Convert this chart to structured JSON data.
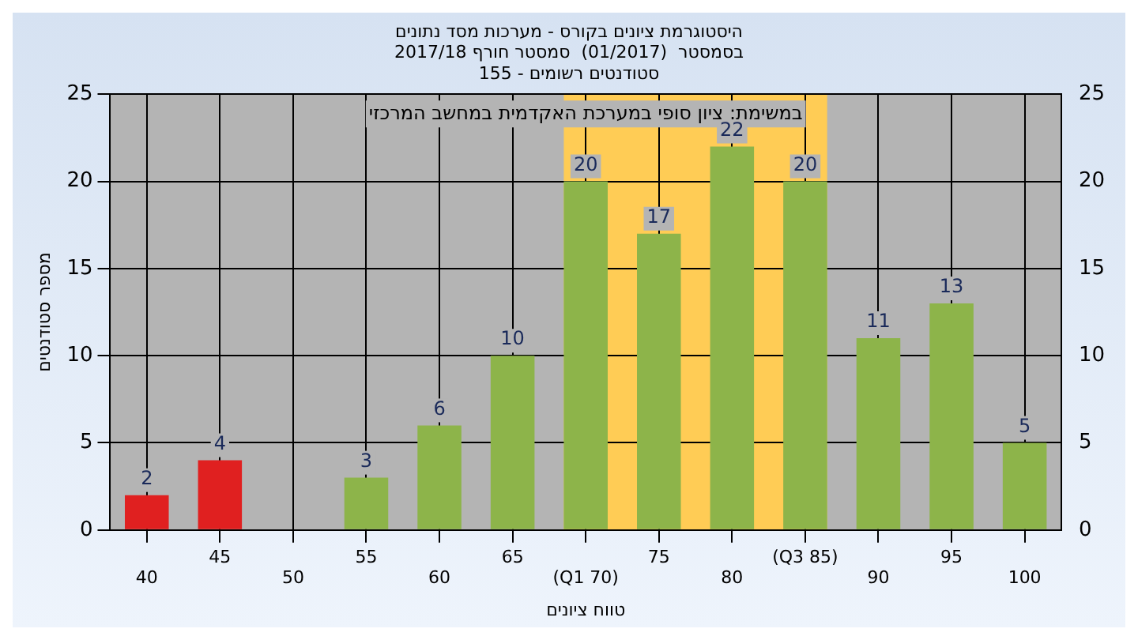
{
  "chart_data": {
    "type": "bar",
    "title": "היסטוגרמת ציונים בקורס - מערכות מסד נתונים\nבסמסטר  (01/2017)  סמסטר חורף 2017/18\nסטודנטים רשומים - 155",
    "xlabel": "טווח ציונים",
    "ylabel": "מספר סטודנטים",
    "annotations": [
      "במשימת: ציון סופי במערכת האקדמית במחשב המרכזי"
    ],
    "categories": [
      "40",
      "45",
      "50",
      "55",
      "60",
      "65",
      "(Q1 70)",
      "75",
      "80",
      "(Q3 85)",
      "90",
      "95",
      "100"
    ],
    "values": [
      2,
      4,
      0,
      3,
      6,
      10,
      20,
      17,
      22,
      20,
      11,
      13,
      5
    ],
    "colors": [
      "#e02020",
      "#e02020",
      "#8db44a",
      "#8db44a",
      "#8db44a",
      "#8db44a",
      "#8db44a",
      "#8db44a",
      "#8db44a",
      "#8db44a",
      "#8db44a",
      "#8db44a",
      "#8db44a"
    ],
    "value_labels": [
      "2",
      "4",
      null,
      "3",
      "6",
      "10",
      "20",
      "17",
      "22",
      "20",
      "11",
      "13",
      "5"
    ],
    "bands": [
      {
        "axis": "x",
        "from": "(Q1 70)",
        "to": "(Q3 85)",
        "color": "#ffcc55"
      }
    ],
    "ylim": [
      0,
      25
    ],
    "yticks": [
      0,
      5,
      10,
      15,
      20,
      25
    ],
    "y2lim": [
      0,
      25
    ],
    "y2ticks": [
      0,
      5,
      10,
      15,
      20,
      25
    ],
    "grid": true,
    "legend": false
  }
}
